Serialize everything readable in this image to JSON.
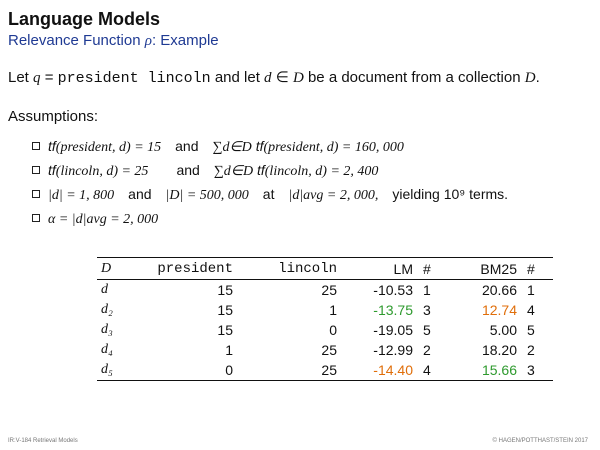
{
  "header": {
    "title": "Language Models",
    "subtitle_text": "Relevance Function ",
    "subtitle_symbol": "ρ",
    "subtitle_tail": ": Example"
  },
  "intro": {
    "let1": "Let ",
    "q": "q",
    "eq1": " = ",
    "query": "president lincoln",
    "and_let": " and let ",
    "d": "d",
    "in": " ∈ ",
    "D": "D",
    "tail": " be a document from a collection ",
    "D2": "D",
    "period": "."
  },
  "assumptions_heading": "Assumptions:",
  "assumptions": [
    {
      "a": "tf",
      "b": "(president, d) = 15",
      "and": "and",
      "sum": "∑d∈D",
      "c": "tf",
      "d": "(president, d) = 160, 000"
    },
    {
      "a": "tf",
      "b": "(lincoln, d) = 25",
      "and": "and",
      "sum": "∑d∈D",
      "c": "tf",
      "d": "(lincoln, d) = 2, 400"
    },
    {
      "a": "|d| = 1, 800",
      "and1": "and",
      "b": "|D| = 500, 000",
      "at": "at",
      "c": "|d|avg = 2, 000,",
      "yield": "yielding 10⁹ terms."
    },
    {
      "a": "α = |d|avg = 2, 000"
    }
  ],
  "table": {
    "headers": [
      "D",
      "president",
      "lincoln",
      "LM",
      "#",
      "BM25",
      "#"
    ],
    "rows": [
      {
        "doc": "d",
        "pres": "15",
        "linc": "25",
        "lm": "-10.53",
        "lm_rank": "1",
        "bm": "20.66",
        "bm_rank": "1",
        "lm_color": "",
        "bm_color": ""
      },
      {
        "doc": "d₂",
        "pres": "15",
        "linc": "1",
        "lm": "-13.75",
        "lm_rank": "3",
        "bm": "12.74",
        "bm_rank": "4",
        "lm_color": "green",
        "bm_color": "orange"
      },
      {
        "doc": "d₃",
        "pres": "15",
        "linc": "0",
        "lm": "-19.05",
        "lm_rank": "5",
        "bm": "5.00",
        "bm_rank": "5",
        "lm_color": "",
        "bm_color": ""
      },
      {
        "doc": "d₄",
        "pres": "1",
        "linc": "25",
        "lm": "-12.99",
        "lm_rank": "2",
        "bm": "18.20",
        "bm_rank": "2",
        "lm_color": "",
        "bm_color": ""
      },
      {
        "doc": "d₅",
        "pres": "0",
        "linc": "25",
        "lm": "-14.40",
        "lm_rank": "4",
        "bm": "15.66",
        "bm_rank": "3",
        "lm_color": "orange",
        "bm_color": "green"
      }
    ]
  },
  "colors": {
    "green": "#2e9a2e",
    "orange": "#e06e0a",
    "subtitle": "#1f3a93"
  },
  "footer": {
    "left": "IR:V-184   Retrieval Models",
    "right": "© HAGEN/POTTHAST/STEIN 2017"
  }
}
